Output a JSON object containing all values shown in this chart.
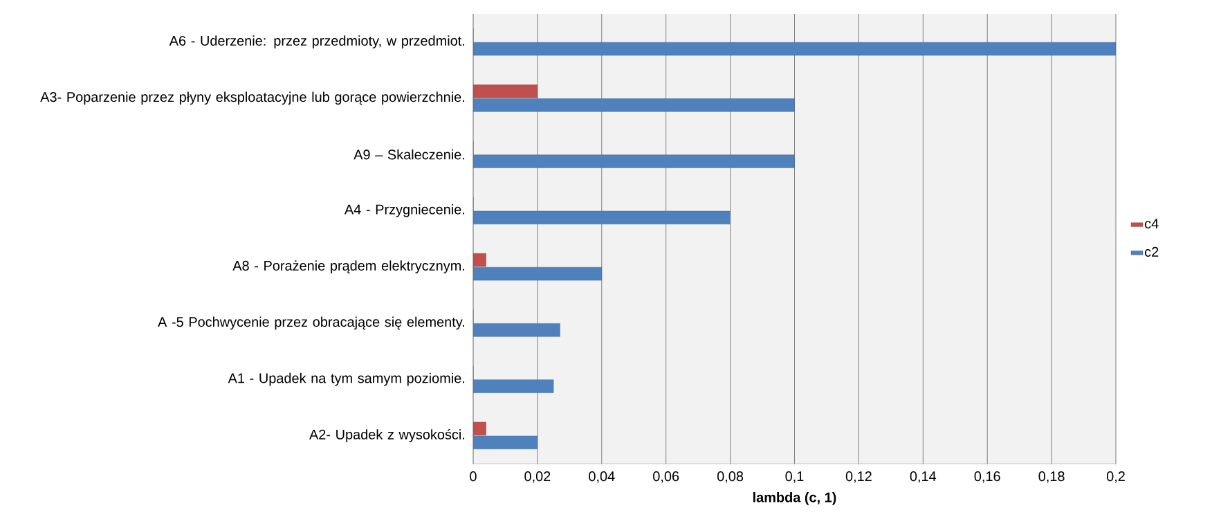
{
  "chart_data": {
    "type": "bar",
    "orientation": "horizontal",
    "xlabel": "lambda (c, 1)",
    "categories": [
      "A6 - Uderzenie: przez przedmioty, w przedmiot.",
      "A3- Poparzenie przez płyny eksploatacyjne lub gorące powierzchnie.",
      "A9 – Skaleczenie.",
      "A4 - Przygniecenie.",
      "A8 - Porażenie prądem elektrycznym.",
      "A -5  Pochwycenie przez obracające się elementy.",
      "A1 - Upadek na tym samym poziomie.",
      "A2- Upadek z wysokości."
    ],
    "series": [
      {
        "name": "c2",
        "color": "#4f81bd",
        "values": [
          0.2,
          0.1,
          0.1,
          0.08,
          0.04,
          0.027,
          0.025,
          0.02
        ]
      },
      {
        "name": "c4",
        "color": "#c0504d",
        "values": [
          0,
          0.02,
          0,
          0,
          0.004,
          0,
          0,
          0.004
        ]
      }
    ],
    "xlim": [
      0,
      0.2
    ],
    "xticks": [
      0,
      {
        "value": 0.02,
        "label": "0,02"
      },
      {
        "value": 0.04,
        "label": "0,04"
      },
      {
        "value": 0.06,
        "label": "0,06"
      },
      {
        "value": 0.08,
        "label": "0,08"
      },
      {
        "value": 0.1,
        "label": "0,1"
      },
      {
        "value": 0.12,
        "label": "0,12"
      },
      {
        "value": 0.14,
        "label": "0,14"
      },
      {
        "value": 0.16,
        "label": "0,16"
      },
      {
        "value": 0.18,
        "label": "0,18"
      },
      {
        "value": 0.2,
        "label": "0,2"
      }
    ],
    "grid": "x",
    "legend": "right"
  }
}
